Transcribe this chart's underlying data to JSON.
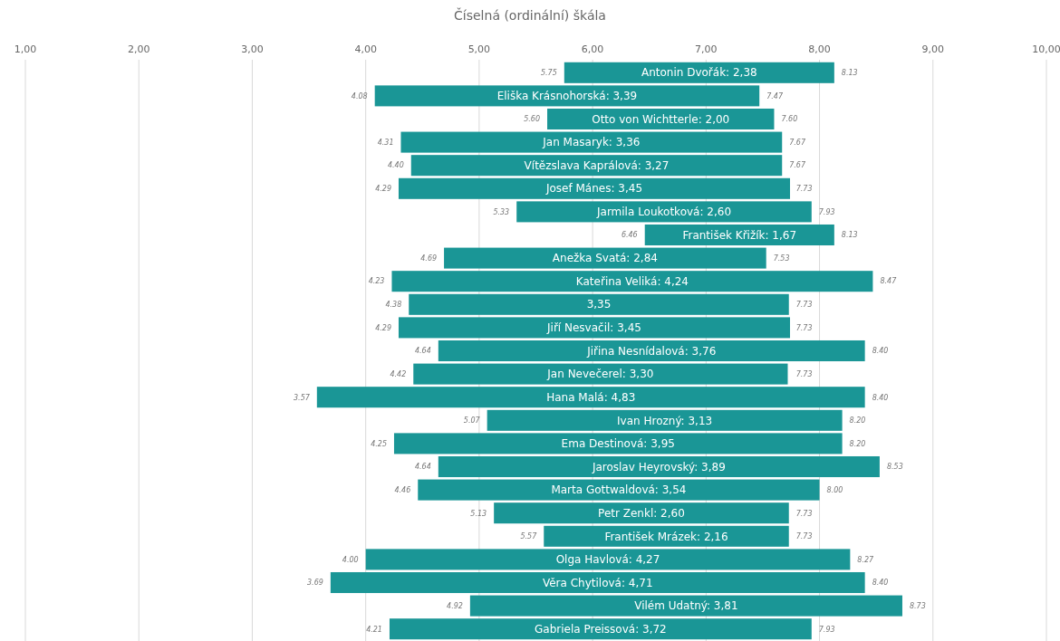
{
  "chart_data": {
    "type": "bar",
    "orientation": "horizontal",
    "subtitle": "Číselná (ordinální) škála",
    "categories": [
      null,
      null,
      null,
      null,
      null,
      null,
      null,
      null,
      null,
      null,
      null,
      null,
      null,
      null,
      null,
      null,
      null,
      null,
      null,
      null,
      null,
      null,
      null,
      null,
      null
    ],
    "base": [
      5.75,
      4.08,
      5.6,
      4.31,
      4.4,
      4.29,
      5.33,
      6.46,
      4.69,
      4.23,
      4.38,
      4.29,
      4.64,
      4.42,
      3.57,
      5.07,
      4.25,
      4.64,
      4.46,
      5.13,
      5.57,
      4.0,
      3.69,
      4.92,
      4.21
    ],
    "values": [
      2.38,
      3.39,
      2.0,
      3.36,
      3.27,
      3.45,
      2.6,
      1.67,
      2.84,
      4.24,
      3.35,
      3.45,
      3.76,
      3.3,
      4.83,
      3.13,
      3.95,
      3.89,
      3.54,
      2.6,
      2.16,
      4.27,
      4.71,
      3.81,
      3.72
    ],
    "value_labels": [
      "Antonin Dvořák: 2,38",
      "Eliška Krásnohorská: 3,39",
      "Otto von Wichtterle: 2,00",
      "Jan Masaryk: 3,36",
      "Vítězslava Kaprálová: 3,27",
      "Josef Mánes: 3,45",
      "Jarmila Loukotková: 2,60",
      "František Křižík: 1,67",
      "Anežka Svatá: 2,84",
      "Kateřina Veliká: 4,24",
      "3,35",
      "Jiří Nesvačil: 3,45",
      "Jiřina Nesnídalová: 3,76",
      "Jan Nevečerel: 3,30",
      "Hana Malá: 4,83",
      "Ivan Hrozný: 3,13",
      "Ema Destinová: 3,95",
      "Jaroslav Heyrovský: 3,89",
      "Marta Gottwaldová: 3,54",
      "Petr Zenkl: 2,60",
      "František Mrázek: 2,16",
      "Olga Havlová: 4,27",
      "Věra Chytilová: 4,71",
      "Vilém Udatný: 3,81",
      "Gabriela Preissová: 3,72"
    ],
    "annotations": [
      {
        "text": "5.75",
        "x": 5.75
      },
      {
        "text": "8.13",
        "x": 8.13
      },
      {
        "text": "4.08",
        "x": 4.08
      },
      {
        "text": "7.47",
        "x": 7.47
      },
      {
        "text": "5.60",
        "x": 5.6
      },
      {
        "text": "7.60",
        "x": 7.6
      },
      {
        "text": "4.31",
        "x": 4.31
      },
      {
        "text": "7.67",
        "x": 7.67
      },
      {
        "text": "4.40",
        "x": 4.4
      },
      {
        "text": "7.67",
        "x": 7.67
      },
      {
        "text": "4.29",
        "x": 4.29
      },
      {
        "text": "7.73",
        "x": 7.73
      },
      {
        "text": "5.33",
        "x": 5.33
      },
      {
        "text": "7.93",
        "x": 7.93
      },
      {
        "text": "6.46",
        "x": 6.46
      },
      {
        "text": "8.13",
        "x": 8.13
      },
      {
        "text": "4.69",
        "x": 4.69
      },
      {
        "text": "7.53",
        "x": 7.53
      },
      {
        "text": "4.23",
        "x": 4.23
      },
      {
        "text": "8.47",
        "x": 8.47
      },
      {
        "text": "4.38",
        "x": 4.38
      },
      {
        "text": "7.73",
        "x": 7.73
      },
      {
        "text": "4.29",
        "x": 4.29
      },
      {
        "text": "7.73",
        "x": 7.73
      },
      {
        "text": "4.64",
        "x": 4.64
      },
      {
        "text": "8.40",
        "x": 8.4
      },
      {
        "text": "4.42",
        "x": 4.42
      },
      {
        "text": "7.73",
        "x": 7.73
      },
      {
        "text": "3.57",
        "x": 3.57
      },
      {
        "text": "8.40",
        "x": 8.4
      },
      {
        "text": "5.07",
        "x": 5.07
      },
      {
        "text": "8.20",
        "x": 8.2
      },
      {
        "text": "4.25",
        "x": 4.25
      },
      {
        "text": "8.20",
        "x": 8.2
      },
      {
        "text": "4.64",
        "x": 4.64
      },
      {
        "text": "8.53",
        "x": 8.53
      },
      {
        "text": "4.46",
        "x": 4.46
      },
      {
        "text": "8.00",
        "x": 8.0
      },
      {
        "text": "5.13",
        "x": 5.13
      },
      {
        "text": "7.73",
        "x": 7.73
      },
      {
        "text": "5.57",
        "x": 5.57
      },
      {
        "text": "7.73",
        "x": 7.73
      },
      {
        "text": "4.00",
        "x": 4.0
      },
      {
        "text": "8.27",
        "x": 8.27
      },
      {
        "text": "3.69",
        "x": 3.69
      },
      {
        "text": "8.40",
        "x": 8.4
      },
      {
        "text": "4.92",
        "x": 4.92
      },
      {
        "text": "8.73",
        "x": 8.73
      },
      {
        "text": "4.21",
        "x": 4.21
      },
      {
        "text": "7.93",
        "x": 7.93
      }
    ],
    "color": "#1a9696",
    "xlim": [
      1,
      10
    ],
    "xticks": [
      {
        "value": 1,
        "label": "1,00"
      },
      {
        "value": 2,
        "label": "2,00"
      },
      {
        "value": 3,
        "label": "3,00"
      },
      {
        "value": 4,
        "label": "4,00"
      },
      {
        "value": 5,
        "label": "5,00"
      },
      {
        "value": 6,
        "label": "6,00"
      },
      {
        "value": 7,
        "label": "7,00"
      },
      {
        "value": 8,
        "label": "8,00"
      },
      {
        "value": 9,
        "label": "9,00"
      },
      {
        "value": 10,
        "label": "10,00"
      }
    ],
    "grid": "x"
  }
}
